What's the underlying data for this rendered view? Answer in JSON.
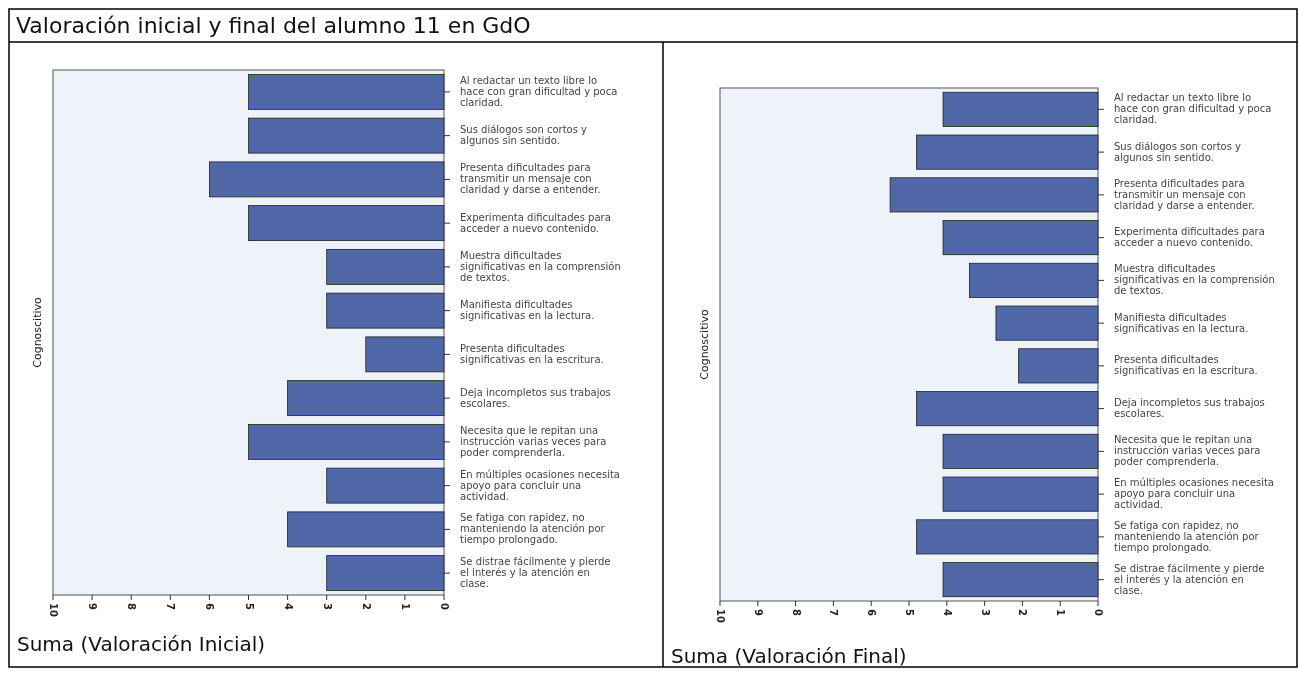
{
  "chart_data": [
    {
      "type": "bar",
      "orientation": "horizontal",
      "title": "Valoración inicial y final del alumno 11 en GdO",
      "xlabel": "Suma (Valoración Inicial)",
      "ylabel": "Cognoscitivo",
      "categories": [
        "Al redactar un texto libre lo hace con gran dificultad  y poca claridad.",
        "Sus diálogos son cortos y algunos sin sentido.",
        "Presenta dificultades para transmitir un mensaje con claridad y darse a entender.",
        "Experimenta dificultades para acceder a nuevo contenido.",
        "Muestra dificultades significativas en la comprensión de textos.",
        "Manifiesta dificultades significativas en la lectura.",
        "Presenta dificultades significativas en la escritura.",
        "Deja incompletos sus trabajos escolares.",
        "Necesita que le repitan una instrucción varias veces para poder comprenderla.",
        "En múltiples ocasiones necesita apoyo para concluir una actividad.",
        "Se fatiga con rapidez, no manteniendo la atención por tiempo prolongado.",
        "Se distrae fácilmente y pierde el interés y la atención en clase."
      ],
      "values": [
        5,
        5,
        6,
        5,
        3,
        3,
        2,
        4,
        5,
        3,
        4,
        3
      ],
      "color": "#5068a8",
      "xlim": [
        10,
        0
      ],
      "xticks": [
        10,
        9,
        8,
        7,
        6,
        5,
        4,
        3,
        2,
        1,
        0
      ]
    },
    {
      "type": "bar",
      "orientation": "horizontal",
      "xlabel": "Suma (Valoración Final)",
      "ylabel": "Cognoscitivo",
      "categories": [
        "Al redactar un texto libre lo hace con gran dificultad  y poca claridad.",
        "Sus diálogos son cortos y algunos sin sentido.",
        "Presenta dificultades para transmitir un mensaje con claridad y darse a entender.",
        "Experimenta dificultades para acceder a nuevo contenido.",
        "Muestra dificultades significativas en la comprensión de textos.",
        "Manifiesta dificultades significativas en la lectura.",
        "Presenta dificultades significativas en la escritura.",
        "Deja incompletos sus trabajos escolares.",
        "Necesita que le repitan una instrucción varias veces para poder comprenderla.",
        "En múltiples ocasiones necesita apoyo para concluir una actividad.",
        "Se fatiga con rapidez, no manteniendo la atención por tiempo prolongado.",
        "Se distrae fácilmente y pierde el interés y la atención en clase."
      ],
      "values": [
        4.1,
        4.8,
        5.5,
        4.1,
        3.4,
        2.7,
        2.1,
        4.8,
        4.1,
        4.1,
        4.8,
        4.1
      ],
      "color": "#5068a8",
      "xlim": [
        10,
        0
      ],
      "xticks": [
        10,
        9,
        8,
        7,
        6,
        5,
        4,
        3,
        2,
        1,
        0
      ]
    }
  ]
}
